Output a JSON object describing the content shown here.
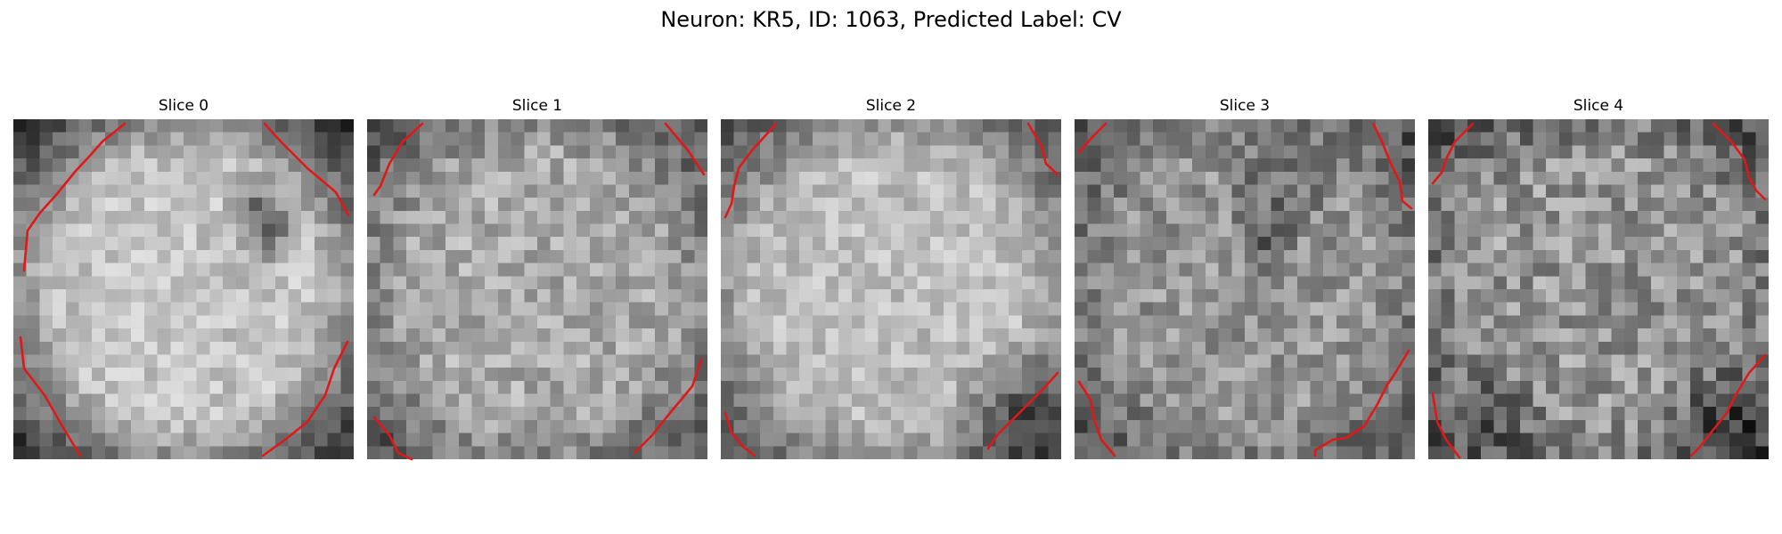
{
  "title": "Neuron: KR5, ID: 1063, Predicted Label: CV",
  "colors": {
    "background": "#ffffff",
    "outline": "#e01818",
    "colormap": "gray"
  },
  "slices": [
    {
      "label": "Slice 0"
    },
    {
      "label": "Slice 1"
    },
    {
      "label": "Slice 2"
    },
    {
      "label": "Slice 3"
    },
    {
      "label": "Slice 4"
    }
  ]
}
